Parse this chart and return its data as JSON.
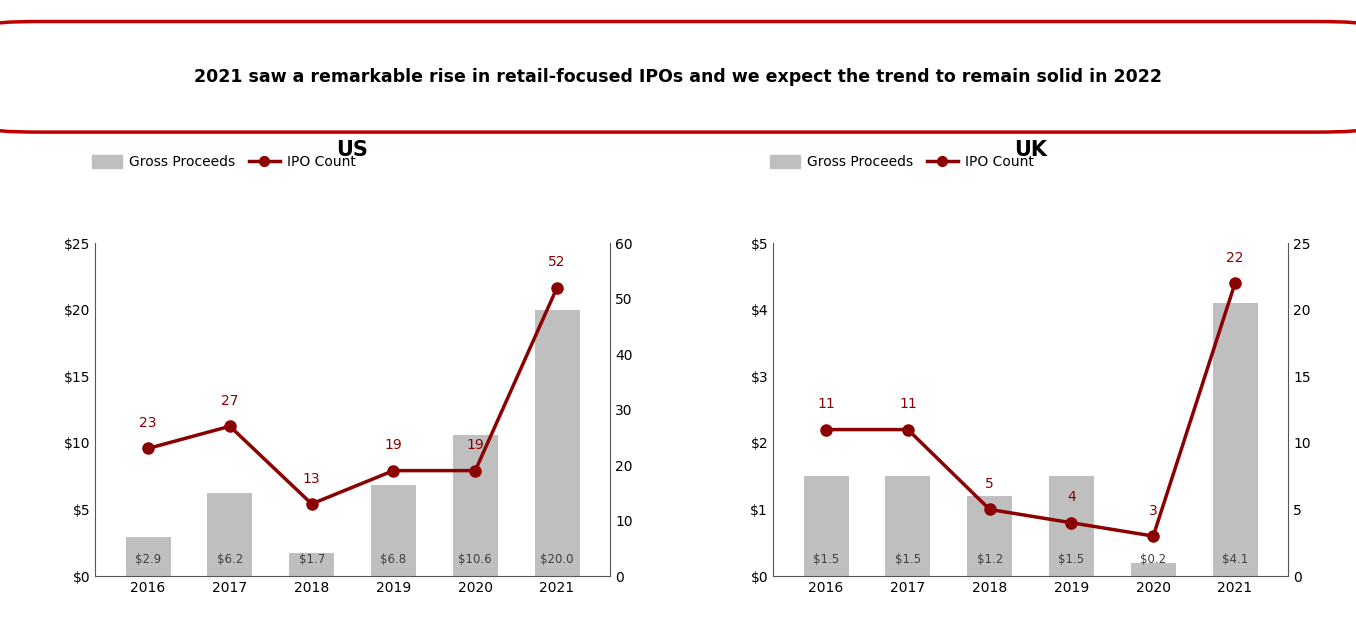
{
  "title_box": "2021 saw a remarkable rise in retail-focused IPOs and we expect the trend to remain solid in 2022",
  "us": {
    "title": "US",
    "years": [
      2016,
      2017,
      2018,
      2019,
      2020,
      2021
    ],
    "gross_proceeds": [
      2.9,
      6.2,
      1.7,
      6.8,
      10.6,
      20.0
    ],
    "ipo_count": [
      23,
      27,
      13,
      19,
      19,
      52
    ],
    "bar_labels": [
      "$2.9",
      "$6.2",
      "$1.7",
      "$6.8",
      "$10.6",
      "$20.0"
    ],
    "ylim_left": [
      0,
      25
    ],
    "ylim_right": [
      0,
      60
    ],
    "yticks_left": [
      0,
      5,
      10,
      15,
      20,
      25
    ],
    "yticks_right": [
      0,
      10,
      20,
      30,
      40,
      50,
      60
    ],
    "yticklabels_left": [
      "$0",
      "$5",
      "$10",
      "$15",
      "$20",
      "$25"
    ],
    "yticklabels_right": [
      "0",
      "10",
      "20",
      "30",
      "40",
      "50",
      "60"
    ]
  },
  "uk": {
    "title": "UK",
    "years": [
      2016,
      2017,
      2018,
      2019,
      2020,
      2021
    ],
    "gross_proceeds": [
      1.5,
      1.5,
      1.2,
      1.5,
      0.2,
      4.1
    ],
    "ipo_count": [
      11,
      11,
      5,
      4,
      3,
      22
    ],
    "bar_labels": [
      "$1.5",
      "$1.5",
      "$1.2",
      "$1.5",
      "$0.2",
      "$4.1"
    ],
    "ylim_left": [
      0,
      5
    ],
    "ylim_right": [
      0,
      25
    ],
    "yticks_left": [
      0,
      1,
      2,
      3,
      4,
      5
    ],
    "yticks_right": [
      0,
      5,
      10,
      15,
      20,
      25
    ],
    "yticklabels_left": [
      "$0",
      "$1",
      "$2",
      "$3",
      "$4",
      "$5"
    ],
    "yticklabels_right": [
      "0",
      "5",
      "10",
      "15",
      "20",
      "25"
    ]
  },
  "bar_color": "#BFBFBF",
  "line_color": "#8B0000",
  "bar_label_color": "#404040",
  "count_label_color": "#8B0000",
  "background_color": "#FFFFFF",
  "title_box_border_color": "#C00000",
  "legend_bar_label": "Gross Proceeds",
  "legend_line_label": "IPO Count"
}
